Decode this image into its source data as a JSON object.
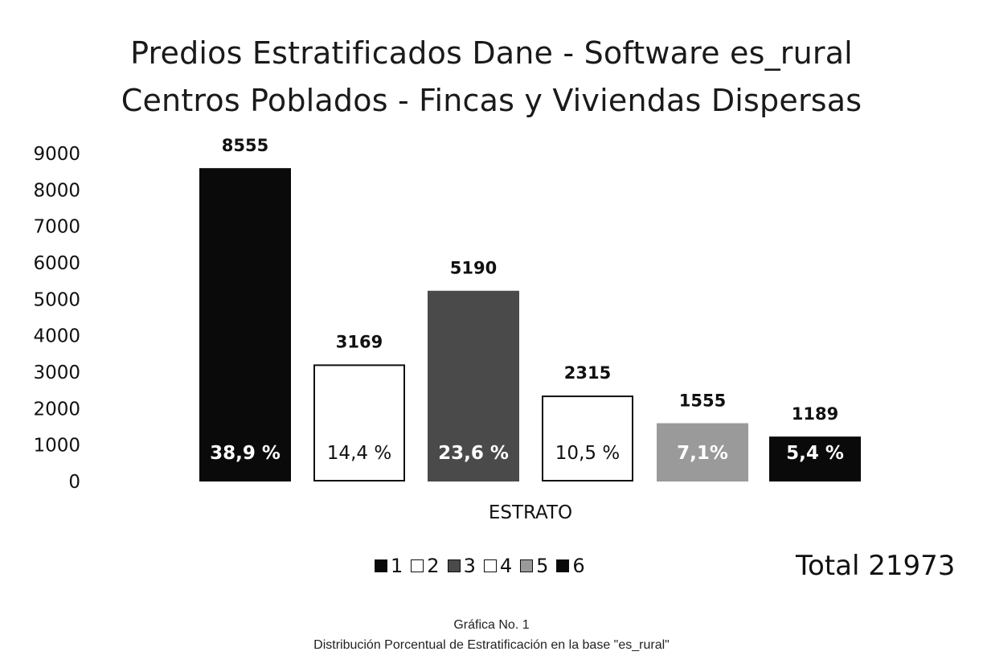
{
  "chart_data": {
    "type": "bar",
    "title": "Predios Estratificados Dane - Software es_rural",
    "subtitle": "Centros Poblados - Fincas y Viviendas Dispersas",
    "xlabel": "ESTRATO",
    "ylabel": "",
    "ylim": [
      0,
      9000
    ],
    "yticks": [
      "9000",
      "8000",
      "7000",
      "6000",
      "5000",
      "4000",
      "3000",
      "2000",
      "1000",
      "0"
    ],
    "categories": [
      "1",
      "2",
      "3",
      "4",
      "5",
      "6"
    ],
    "values": [
      8555,
      3169,
      5190,
      2315,
      1555,
      1189
    ],
    "value_labels": [
      "8555",
      "3169",
      "5190",
      "2315",
      "1555",
      "1189"
    ],
    "percent_labels": [
      "38,9 %",
      "14,4 %",
      "23,6 %",
      "10,5 %",
      "7,1%",
      "5,4 %"
    ],
    "bar_fills": [
      "#0a0a0a",
      "#ffffff",
      "#4a4a4a",
      "#ffffff",
      "#9a9a9a",
      "#0a0a0a"
    ],
    "percent_colors": [
      "#ffffff",
      "#111111",
      "#ffffff",
      "#111111",
      "#ffffff",
      "#ffffff"
    ],
    "legend": {
      "placement": "bottom",
      "entries": [
        "1",
        "2",
        "3",
        "4",
        "5",
        "6"
      ]
    },
    "grid": false
  },
  "total_label": "Total 21973",
  "caption": {
    "line1": "Gráfica No. 1",
    "line2": "Distribución Porcentual de Estratificación en la base \"es_rural\""
  }
}
